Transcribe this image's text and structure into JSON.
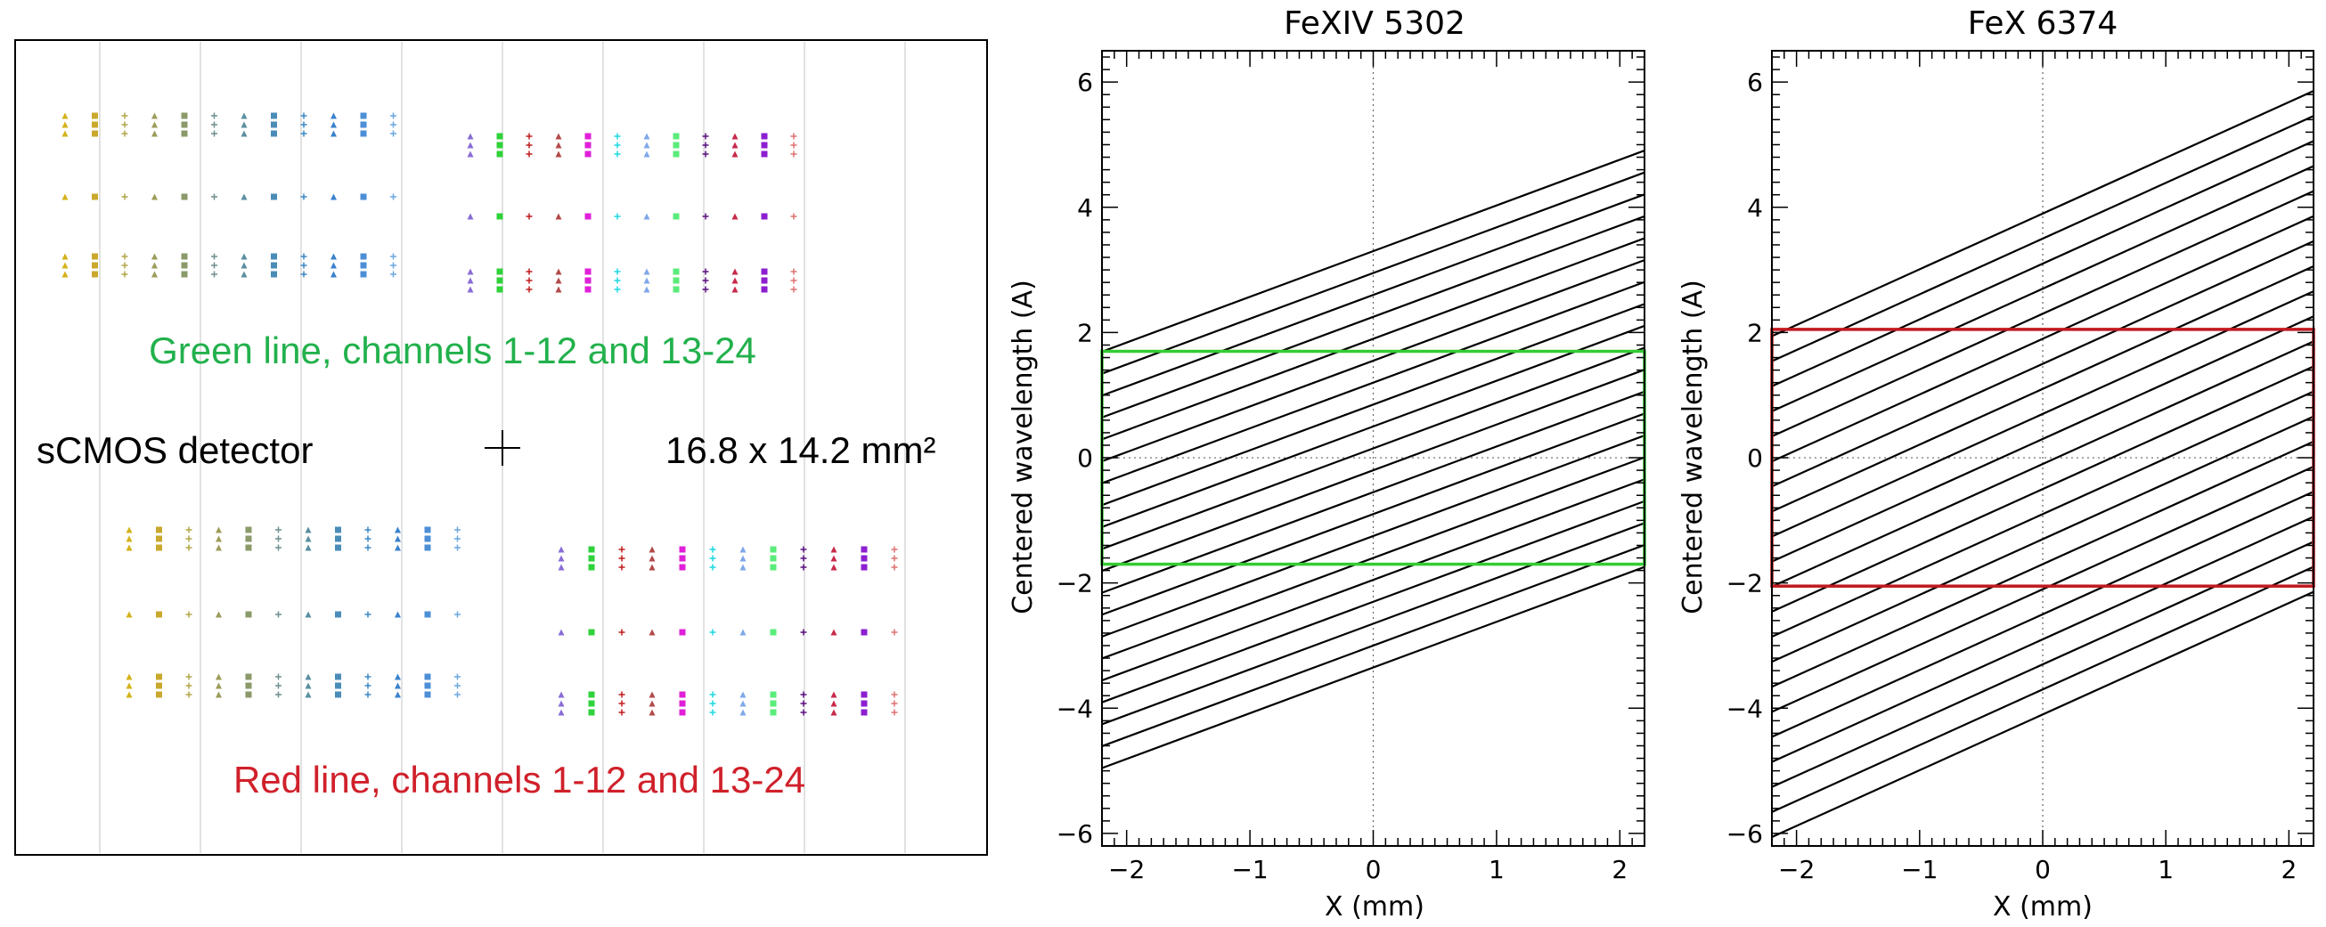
{
  "detector_panel": {
    "green_label": "Green line, channels 1-12 and 13-24",
    "red_label": "Red line, channels 1-12 and 13-24",
    "detector_label": "sCMOS detector",
    "size_label": "16.8 x 14.2 mm²",
    "colors": {
      "green_label": "#22b14c",
      "red_label": "#d0202a",
      "frame": "#000000",
      "grid": "#d9d9d9"
    },
    "channel_colors": [
      "#d4b21a",
      "#c9a82d",
      "#b3a64a",
      "#9c9c5a",
      "#8a9a6a",
      "#6f8f8f",
      "#5a8fa0",
      "#4a8cb8",
      "#3c88c4",
      "#3a82cc",
      "#4d8fd6",
      "#6aa7e0",
      "#8a6cd6",
      "#2fd23a",
      "#c01c1c",
      "#b34a4a",
      "#e020d8",
      "#1fd8e0",
      "#7fa8e8",
      "#5aec7a",
      "#5a1080",
      "#c82a4a",
      "#8c1fd0",
      "#e07070"
    ]
  },
  "chart_data": [
    {
      "type": "line",
      "title": "FeXIV 5302",
      "xlabel": "X (mm)",
      "ylabel": "Centered wavelength (A)",
      "xlim": [
        -2.2,
        2.2
      ],
      "ylim": [
        -6.2,
        6.5
      ],
      "xticks": [
        -2,
        -1,
        0,
        1,
        2
      ],
      "yticks": [
        -6,
        -4,
        -2,
        0,
        2,
        4,
        6
      ],
      "grid": false,
      "slope": 0.73,
      "line_offsets": [
        3.3,
        2.95,
        2.6,
        2.25,
        1.9,
        1.55,
        1.2,
        0.85,
        0.5,
        0.15,
        -0.2,
        -0.55,
        -0.9,
        -1.25,
        -1.6,
        -1.95,
        -2.3,
        -2.65,
        -3.0,
        -3.35
      ],
      "box": {
        "x": [
          -2.2,
          2.2
        ],
        "y": [
          -1.7,
          1.7
        ],
        "color": "#33cc33"
      }
    },
    {
      "type": "line",
      "title": "FeX 6374",
      "xlabel": "X (mm)",
      "ylabel": "Centered wavelength (A)",
      "xlim": [
        -2.2,
        2.2
      ],
      "ylim": [
        -6.2,
        6.5
      ],
      "xticks": [
        -2,
        -1,
        0,
        1,
        2
      ],
      "yticks": [
        -6,
        -4,
        -2,
        0,
        2,
        4,
        6
      ],
      "grid": false,
      "slope": 0.89,
      "line_offsets": [
        3.9,
        3.5,
        3.1,
        2.7,
        2.3,
        1.9,
        1.5,
        1.1,
        0.7,
        0.3,
        -0.1,
        -0.5,
        -0.9,
        -1.3,
        -1.7,
        -2.1,
        -2.5,
        -2.9,
        -3.3,
        -3.7,
        -4.1
      ],
      "box": {
        "x": [
          -2.2,
          2.2
        ],
        "y": [
          -2.05,
          2.05
        ],
        "color": "#c0191f"
      }
    }
  ]
}
